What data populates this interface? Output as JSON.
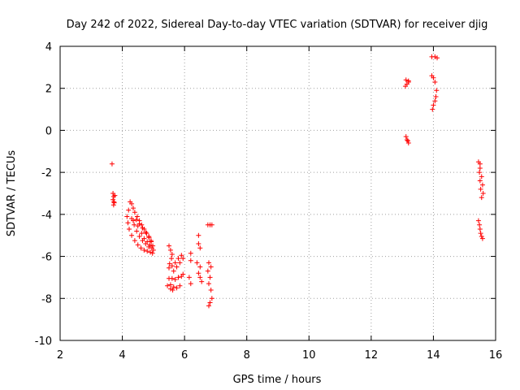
{
  "chart_data": {
    "type": "scatter",
    "title": "Day 242 of 2022, Sidereal Day-to-day VTEC variation (SDTVAR) for receiver djig",
    "xlabel": "GPS time / hours",
    "ylabel": "SDTVAR / TECUs",
    "xlim": [
      2,
      16
    ],
    "ylim": [
      -10,
      4
    ],
    "xticks": [
      2,
      4,
      6,
      8,
      10,
      12,
      14,
      16
    ],
    "yticks": [
      -10,
      -8,
      -6,
      -4,
      -2,
      0,
      2,
      4
    ],
    "xtick_labels": [
      "2",
      "4",
      "6",
      "8",
      "10",
      "12",
      "14",
      "16"
    ],
    "ytick_labels": [
      "-10",
      "-8",
      "-6",
      "-4",
      "-2",
      "0",
      "2",
      "4"
    ],
    "grid": true,
    "marker": "plus",
    "color": "#ff0000",
    "series": [
      {
        "name": "SDTVAR",
        "points": [
          [
            3.67,
            -1.6
          ],
          [
            3.7,
            -3.0
          ],
          [
            3.72,
            -3.15
          ],
          [
            3.7,
            -3.3
          ],
          [
            3.74,
            -3.45
          ],
          [
            3.72,
            -3.55
          ],
          [
            3.76,
            -3.1
          ],
          [
            3.73,
            -3.4
          ],
          [
            4.25,
            -3.4
          ],
          [
            4.3,
            -3.5
          ],
          [
            4.35,
            -3.7
          ],
          [
            4.4,
            -3.9
          ],
          [
            4.48,
            -4.1
          ],
          [
            4.55,
            -4.3
          ],
          [
            4.62,
            -4.5
          ],
          [
            4.7,
            -4.7
          ],
          [
            4.78,
            -4.9
          ],
          [
            4.86,
            -5.1
          ],
          [
            4.93,
            -5.3
          ],
          [
            4.98,
            -5.5
          ],
          [
            5.0,
            -5.7
          ],
          [
            4.97,
            -5.85
          ],
          [
            4.2,
            -3.8
          ],
          [
            4.15,
            -4.1
          ],
          [
            4.18,
            -4.4
          ],
          [
            4.22,
            -4.7
          ],
          [
            4.3,
            -5.0
          ],
          [
            4.4,
            -5.25
          ],
          [
            4.5,
            -5.45
          ],
          [
            4.6,
            -5.6
          ],
          [
            4.7,
            -5.7
          ],
          [
            4.8,
            -5.75
          ],
          [
            4.9,
            -5.8
          ],
          [
            4.3,
            -4.2
          ],
          [
            4.38,
            -4.5
          ],
          [
            4.46,
            -4.8
          ],
          [
            4.55,
            -5.05
          ],
          [
            4.65,
            -5.25
          ],
          [
            4.75,
            -5.4
          ],
          [
            4.85,
            -5.55
          ],
          [
            4.45,
            -4.25
          ],
          [
            4.55,
            -4.45
          ],
          [
            4.65,
            -4.65
          ],
          [
            4.75,
            -4.85
          ],
          [
            4.85,
            -5.05
          ],
          [
            4.92,
            -5.25
          ],
          [
            4.35,
            -4.3
          ],
          [
            4.5,
            -4.55
          ],
          [
            4.62,
            -4.9
          ],
          [
            4.7,
            -5.15
          ],
          [
            4.8,
            -5.3
          ],
          [
            4.88,
            -5.45
          ],
          [
            4.95,
            -5.6
          ],
          [
            5.5,
            -5.5
          ],
          [
            5.55,
            -5.7
          ],
          [
            5.6,
            -5.9
          ],
          [
            5.58,
            -6.1
          ],
          [
            5.52,
            -6.35
          ],
          [
            5.5,
            -6.55
          ],
          [
            5.6,
            -6.45
          ],
          [
            5.7,
            -6.3
          ],
          [
            5.8,
            -6.1
          ],
          [
            5.9,
            -5.95
          ],
          [
            5.95,
            -6.1
          ],
          [
            5.85,
            -6.3
          ],
          [
            5.75,
            -6.5
          ],
          [
            5.65,
            -6.7
          ],
          [
            5.5,
            -7.05
          ],
          [
            5.6,
            -7.05
          ],
          [
            5.7,
            -7.1
          ],
          [
            5.8,
            -7.0
          ],
          [
            5.9,
            -6.95
          ],
          [
            5.95,
            -6.85
          ],
          [
            5.55,
            -7.35
          ],
          [
            5.65,
            -7.45
          ],
          [
            5.75,
            -7.5
          ],
          [
            5.85,
            -7.4
          ],
          [
            5.55,
            -7.55
          ],
          [
            5.62,
            -7.6
          ],
          [
            5.45,
            -7.4
          ],
          [
            6.2,
            -5.85
          ],
          [
            6.2,
            -6.2
          ],
          [
            6.15,
            -7.0
          ],
          [
            6.2,
            -7.3
          ],
          [
            6.45,
            -5.0
          ],
          [
            6.45,
            -5.4
          ],
          [
            6.5,
            -5.6
          ],
          [
            6.4,
            -6.3
          ],
          [
            6.5,
            -6.5
          ],
          [
            6.45,
            -6.8
          ],
          [
            6.5,
            -7.0
          ],
          [
            6.55,
            -7.2
          ],
          [
            6.75,
            -4.5
          ],
          [
            6.82,
            -4.5
          ],
          [
            6.88,
            -4.5
          ],
          [
            6.78,
            -6.3
          ],
          [
            6.85,
            -6.5
          ],
          [
            6.75,
            -6.7
          ],
          [
            6.82,
            -7.0
          ],
          [
            6.78,
            -7.3
          ],
          [
            6.85,
            -7.6
          ],
          [
            6.88,
            -8.0
          ],
          [
            6.82,
            -8.2
          ],
          [
            6.78,
            -8.35
          ],
          [
            13.1,
            2.1
          ],
          [
            13.15,
            2.2
          ],
          [
            13.2,
            2.3
          ],
          [
            13.12,
            2.4
          ],
          [
            13.2,
            2.35
          ],
          [
            13.12,
            -0.3
          ],
          [
            13.15,
            -0.45
          ],
          [
            13.2,
            -0.6
          ],
          [
            13.18,
            -0.5
          ],
          [
            13.95,
            3.5
          ],
          [
            14.05,
            3.5
          ],
          [
            14.12,
            3.45
          ],
          [
            13.95,
            2.6
          ],
          [
            14.0,
            2.5
          ],
          [
            14.05,
            2.3
          ],
          [
            14.1,
            1.9
          ],
          [
            14.08,
            1.6
          ],
          [
            14.05,
            1.4
          ],
          [
            14.0,
            1.2
          ],
          [
            13.97,
            1.0
          ],
          [
            15.45,
            -1.5
          ],
          [
            15.5,
            -1.8
          ],
          [
            15.48,
            -2.0
          ],
          [
            15.55,
            -2.2
          ],
          [
            15.5,
            -2.4
          ],
          [
            15.58,
            -2.6
          ],
          [
            15.52,
            -2.8
          ],
          [
            15.6,
            -3.0
          ],
          [
            15.55,
            -3.2
          ],
          [
            15.5,
            -1.6
          ],
          [
            15.45,
            -4.3
          ],
          [
            15.48,
            -4.5
          ],
          [
            15.5,
            -4.7
          ],
          [
            15.52,
            -4.9
          ],
          [
            15.55,
            -5.05
          ],
          [
            15.58,
            -5.15
          ]
        ]
      }
    ]
  }
}
